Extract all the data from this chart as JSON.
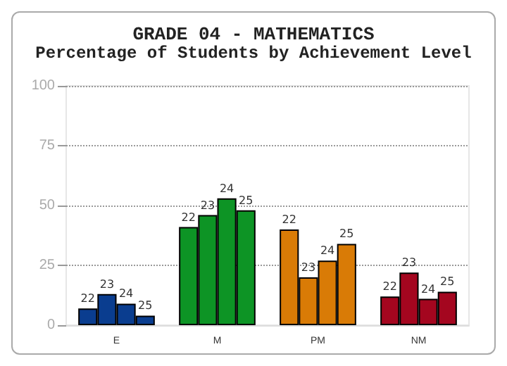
{
  "chart_data": {
    "type": "bar",
    "title": "GRADE 04 - MATHEMATICS",
    "subtitle": "Percentage of Students by Achievement Level",
    "categories": [
      "E",
      "M",
      "PM",
      "NM"
    ],
    "series": [
      {
        "name": "22",
        "colors": [
          "#0a3d8f",
          "#0d9425",
          "#d97b06",
          "#a4061f"
        ],
        "values": [
          7,
          41,
          40,
          12
        ]
      },
      {
        "name": "23",
        "colors": [
          "#0a3d8f",
          "#0d9425",
          "#d97b06",
          "#a4061f"
        ],
        "values": [
          13,
          46,
          20,
          22
        ]
      },
      {
        "name": "24",
        "colors": [
          "#0a3d8f",
          "#0d9425",
          "#d97b06",
          "#a4061f"
        ],
        "values": [
          9,
          53,
          27,
          11
        ]
      },
      {
        "name": "25",
        "colors": [
          "#0a3d8f",
          "#0d9425",
          "#d97b06",
          "#a4061f"
        ],
        "values": [
          4,
          48,
          34,
          14
        ]
      }
    ],
    "ylim": [
      0,
      100
    ],
    "yticks": [
      0,
      25,
      50,
      75,
      100
    ],
    "grid": "y",
    "legend": false
  }
}
